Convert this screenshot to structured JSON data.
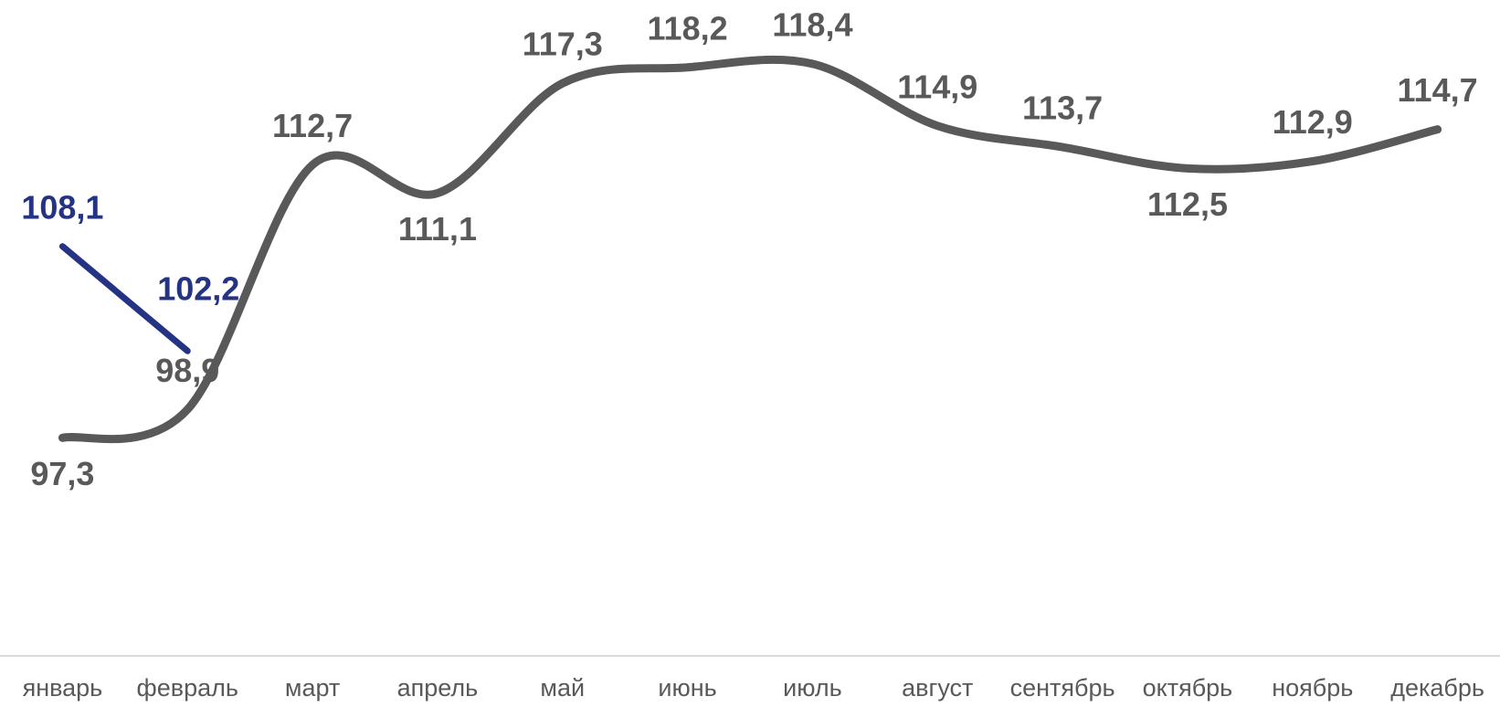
{
  "chart_data": {
    "type": "line",
    "categories": [
      "январь",
      "февраль",
      "март",
      "апрель",
      "май",
      "июнь",
      "июль",
      "август",
      "сентябрь",
      "октябрь",
      "ноябрь",
      "декабрь"
    ],
    "series": [
      {
        "color": "#595959",
        "values": [
          97.3,
          98.9,
          112.7,
          111.1,
          117.3,
          118.2,
          118.4,
          114.9,
          113.7,
          112.5,
          112.9,
          114.7
        ],
        "value_labels": [
          "97,3",
          "98,9",
          "112,7",
          "111,1",
          "117,3",
          "118,2",
          "118,4",
          "114,9",
          "113,7",
          "112,5",
          "112,9",
          "114,7"
        ]
      },
      {
        "color": "#253384",
        "values": [
          108.1,
          102.2,
          null,
          null,
          null,
          null,
          null,
          null,
          null,
          null,
          null,
          null
        ],
        "value_labels": [
          "108,1",
          "102,2",
          null,
          null,
          null,
          null,
          null,
          null,
          null,
          null,
          null,
          null
        ]
      }
    ],
    "ylim": [
      85,
      122
    ]
  }
}
